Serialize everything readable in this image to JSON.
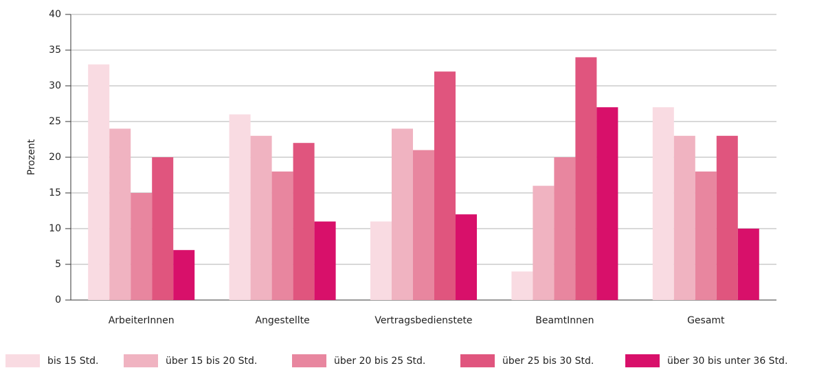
{
  "chart_data": {
    "type": "bar",
    "y_label": "Prozent",
    "categories": [
      "ArbeiterInnen",
      "Angestellte",
      "Vertragsbedienstete",
      "BeamtInnen",
      "Gesamt"
    ],
    "series": [
      {
        "name": "bis 15 Std.",
        "color": "#f9dbe2",
        "values": [
          33,
          26,
          11,
          4,
          27
        ]
      },
      {
        "name": "über 15 bis 20 Std.",
        "color": "#f0b3c1",
        "values": [
          24,
          23,
          24,
          16,
          23
        ]
      },
      {
        "name": "über 20 bis 25 Std.",
        "color": "#e8869f",
        "values": [
          15,
          18,
          21,
          20,
          18
        ]
      },
      {
        "name": "über 25 bis 30 Std.",
        "color": "#e0557e",
        "values": [
          20,
          22,
          32,
          34,
          23
        ]
      },
      {
        "name": "über 30 bis unter 36 Std.",
        "color": "#d8106a",
        "values": [
          7,
          11,
          12,
          27,
          10
        ]
      }
    ],
    "ylim": [
      0,
      40
    ],
    "yticks": [
      0,
      5,
      10,
      15,
      20,
      25,
      30,
      35,
      40
    ],
    "grid": true
  }
}
